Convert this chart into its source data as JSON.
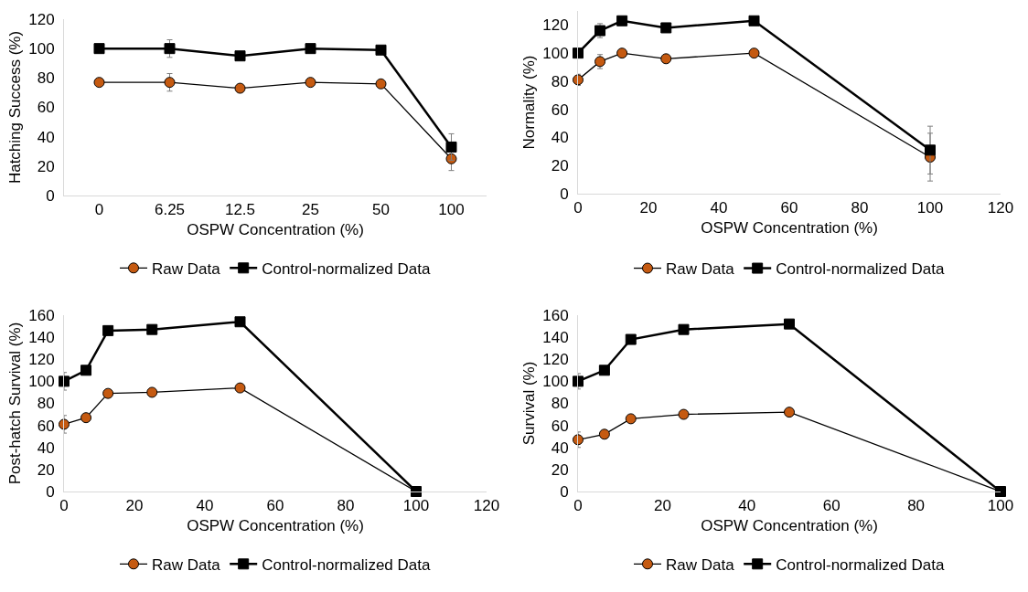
{
  "chart_data": [
    {
      "type": "line",
      "ylabel": "Hatching Success (%)",
      "xlabel": "OSPW Concentration (%)",
      "categories": [
        "0",
        "6.25",
        "12.5",
        "25",
        "50",
        "100"
      ],
      "ylim": [
        0,
        120
      ],
      "yticks": [
        0,
        20,
        40,
        60,
        80,
        100,
        120
      ],
      "grid": false,
      "legend": "bottom",
      "series": [
        {
          "name": "Raw Data",
          "color": "#c55a11",
          "marker": "circle",
          "values": [
            77,
            77,
            73,
            77,
            76,
            25
          ],
          "errors": [
            null,
            6,
            null,
            null,
            null,
            8
          ]
        },
        {
          "name": "Control-normalized Data",
          "color": "#000000",
          "marker": "square",
          "values": [
            100,
            100,
            95,
            100,
            99,
            33
          ],
          "errors": [
            null,
            6,
            null,
            null,
            1,
            9
          ]
        }
      ]
    },
    {
      "type": "line",
      "ylabel": "Normality (%)",
      "xlabel": "OSPW Concentration (%)",
      "x": [
        0,
        6.25,
        12.5,
        25,
        50,
        100
      ],
      "xlim": [
        0,
        120
      ],
      "xticks": [
        0,
        20,
        40,
        60,
        80,
        100,
        120
      ],
      "ylim": [
        0,
        130
      ],
      "yticks": [
        0,
        20,
        40,
        60,
        80,
        100,
        120
      ],
      "grid": false,
      "legend": "bottom",
      "series": [
        {
          "name": "Raw Data",
          "color": "#c55a11",
          "marker": "circle",
          "values": [
            81,
            94,
            100,
            96,
            100,
            26
          ],
          "errors": [
            4,
            5,
            null,
            null,
            null,
            17
          ]
        },
        {
          "name": "Control-normalized Data",
          "color": "#000000",
          "marker": "square",
          "values": [
            100,
            116,
            123,
            118,
            123,
            31
          ],
          "errors": [
            null,
            5,
            null,
            null,
            null,
            17
          ]
        }
      ]
    },
    {
      "type": "line",
      "ylabel": "Post-hatch Survival (%)",
      "xlabel": "OSPW Concentration (%)",
      "x": [
        0,
        6.25,
        12.5,
        25,
        50,
        100
      ],
      "xlim": [
        0,
        120
      ],
      "xticks": [
        0,
        20,
        40,
        60,
        80,
        100,
        120
      ],
      "ylim": [
        0,
        160
      ],
      "yticks": [
        0,
        20,
        40,
        60,
        80,
        100,
        120,
        140,
        160
      ],
      "grid": false,
      "legend": "bottom",
      "series": [
        {
          "name": "Raw Data",
          "color": "#c55a11",
          "marker": "circle",
          "values": [
            61,
            67,
            89,
            90,
            94,
            0
          ],
          "errors": [
            8,
            null,
            null,
            null,
            null,
            null
          ]
        },
        {
          "name": "Control-normalized Data",
          "color": "#000000",
          "marker": "square",
          "values": [
            100,
            110,
            146,
            147,
            154,
            0
          ],
          "errors": [
            8,
            null,
            null,
            null,
            null,
            null
          ]
        }
      ]
    },
    {
      "type": "line",
      "ylabel": "Survival (%)",
      "xlabel": "OSPW Concentration (%)",
      "x": [
        0,
        6.25,
        12.5,
        25,
        50,
        100
      ],
      "xlim": [
        0,
        100
      ],
      "xticks": [
        0,
        20,
        40,
        60,
        80,
        100
      ],
      "ylim": [
        0,
        160
      ],
      "yticks": [
        0,
        20,
        40,
        60,
        80,
        100,
        120,
        140,
        160
      ],
      "grid": false,
      "legend": "bottom",
      "series": [
        {
          "name": "Raw Data",
          "color": "#c55a11",
          "marker": "circle",
          "values": [
            47,
            52,
            66,
            70,
            72,
            0
          ],
          "errors": [
            7,
            null,
            null,
            null,
            null,
            null
          ]
        },
        {
          "name": "Control-normalized Data",
          "color": "#000000",
          "marker": "square",
          "values": [
            100,
            110,
            138,
            147,
            152,
            0
          ],
          "errors": [
            7,
            null,
            null,
            null,
            null,
            null
          ]
        }
      ]
    }
  ]
}
